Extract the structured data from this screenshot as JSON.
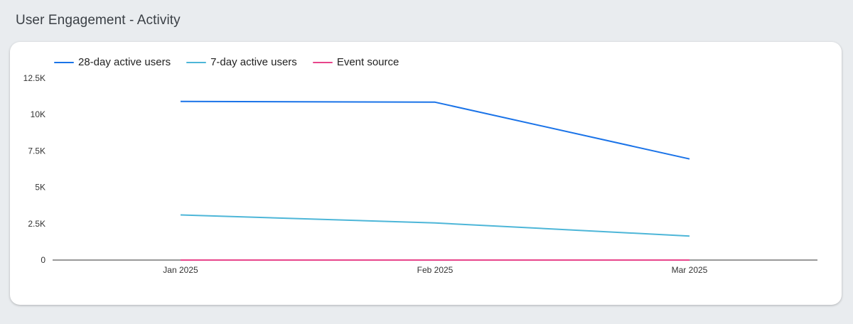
{
  "page": {
    "title": "User Engagement - Activity"
  },
  "legend": {
    "items": [
      {
        "label": "28-day active users",
        "color": "#1a73e8"
      },
      {
        "label": "7-day active users",
        "color": "#4db6d8"
      },
      {
        "label": "Event source",
        "color": "#e8458b"
      }
    ]
  },
  "chart_data": {
    "type": "line",
    "x": [
      "Jan 2025",
      "Feb 2025",
      "Mar 2025"
    ],
    "series": [
      {
        "name": "28-day active users",
        "color": "#1a73e8",
        "values": [
          10900,
          10850,
          6950
        ]
      },
      {
        "name": "7-day active users",
        "color": "#4db6d8",
        "values": [
          3100,
          2550,
          1650
        ]
      },
      {
        "name": "Event source",
        "color": "#e8458b",
        "values": [
          0,
          0,
          0
        ]
      }
    ],
    "y_ticks": [
      {
        "value": 0,
        "label": "0"
      },
      {
        "value": 2500,
        "label": "2.5K"
      },
      {
        "value": 5000,
        "label": "5K"
      },
      {
        "value": 7500,
        "label": "7.5K"
      },
      {
        "value": 10000,
        "label": "10K"
      },
      {
        "value": 12500,
        "label": "12.5K"
      }
    ],
    "ylim": [
      0,
      12500
    ],
    "grid": false,
    "legend_position": "top-left"
  }
}
